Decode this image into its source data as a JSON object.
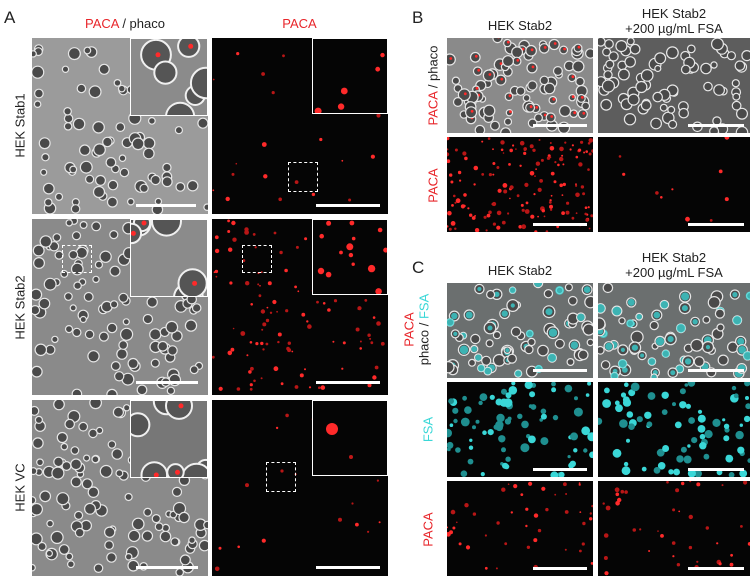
{
  "panels": {
    "A": {
      "letter": "A",
      "col_headers": [
        {
          "parts": [
            {
              "text": "PACA",
              "color": "red"
            },
            {
              "text": " / phaco",
              "color": "dark"
            }
          ]
        },
        {
          "parts": [
            {
              "text": "PACA",
              "color": "red"
            }
          ]
        }
      ],
      "rows": [
        "HEK Stab1",
        "HEK Stab2",
        "HEK VC"
      ]
    },
    "B": {
      "letter": "B",
      "col_headers": [
        "HEK Stab2",
        "HEK Stab2\n+200 µg/mL FSA"
      ],
      "row_labels": [
        {
          "parts": [
            {
              "text": "PACA",
              "color": "red"
            },
            {
              "text": " / phaco",
              "color": "dark"
            }
          ]
        },
        {
          "parts": [
            {
              "text": "PACA",
              "color": "red"
            }
          ]
        }
      ]
    },
    "C": {
      "letter": "C",
      "col_headers": [
        "HEK Stab2",
        "HEK Stab2\n+200 µg/mL FSA"
      ],
      "row_labels": [
        {
          "parts": [
            {
              "text": "PACA",
              "color": "red"
            }
          ]
        },
        {
          "parts": [
            {
              "text": "phaco / ",
              "color": "dark"
            },
            {
              "text": "FSA",
              "color": "cyan"
            }
          ]
        },
        {
          "parts": [
            {
              "text": "FSA",
              "color": "cyan"
            }
          ]
        },
        {
          "parts": [
            {
              "text": "PACA",
              "color": "red"
            }
          ]
        }
      ]
    }
  },
  "colors": {
    "red": "#e8262b",
    "cyan": "#3ad7d7",
    "dark": "#222222"
  }
}
